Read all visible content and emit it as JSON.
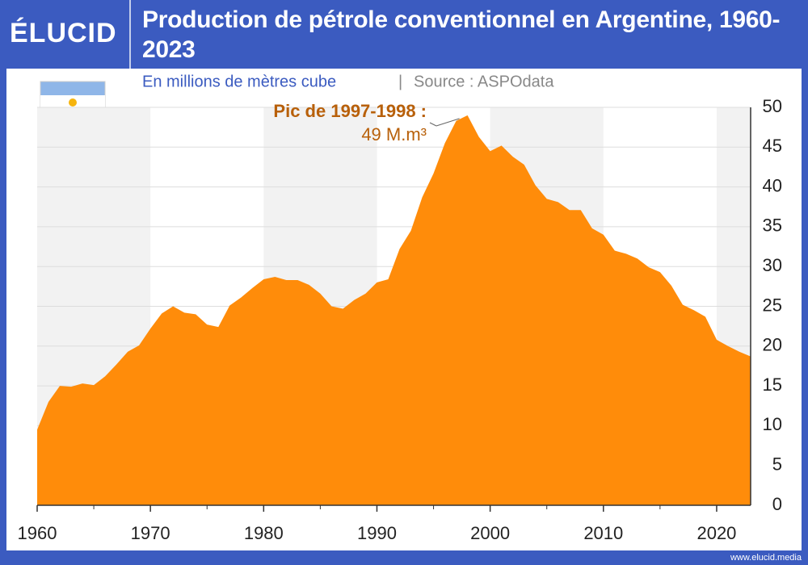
{
  "brand": "ÉLUCID",
  "footer": "www.elucid.media",
  "chart_data": {
    "type": "area",
    "title": "Production de pétrole conventionnel en Argentine, 1960-2023",
    "subtitle": "En millions de mètres cube",
    "source": "Source : ASPOdata",
    "annotation": {
      "title": "Pic de 1997-1998 :",
      "text": "49 M.m³",
      "x": 1998,
      "y": 49
    },
    "color": "#ff8c0a",
    "x": [
      1960,
      1961,
      1962,
      1963,
      1964,
      1965,
      1966,
      1967,
      1968,
      1969,
      1970,
      1971,
      1972,
      1973,
      1974,
      1975,
      1976,
      1977,
      1978,
      1979,
      1980,
      1981,
      1982,
      1983,
      1984,
      1985,
      1986,
      1987,
      1988,
      1989,
      1990,
      1991,
      1992,
      1993,
      1994,
      1995,
      1996,
      1997,
      1998,
      1999,
      2000,
      2001,
      2002,
      2003,
      2004,
      2005,
      2006,
      2007,
      2008,
      2009,
      2010,
      2011,
      2012,
      2013,
      2014,
      2015,
      2016,
      2017,
      2018,
      2019,
      2020,
      2021,
      2022,
      2023
    ],
    "values": [
      9.5,
      13,
      15,
      14.9,
      15.3,
      15.1,
      16.2,
      17.7,
      19.3,
      20.1,
      22.2,
      24.1,
      25,
      24.2,
      24,
      22.7,
      22.4,
      25.1,
      26.1,
      27.3,
      28.4,
      28.7,
      28.3,
      28.3,
      27.7,
      26.6,
      25,
      24.7,
      25.8,
      26.6,
      28,
      28.4,
      32.2,
      34.5,
      38.7,
      41.7,
      45.5,
      48.3,
      49,
      46.3,
      44.5,
      45.2,
      43.8,
      42.8,
      40.2,
      38.5,
      38.1,
      37.1,
      37.1,
      34.8,
      34,
      32,
      31.6,
      31,
      29.9,
      29.3,
      27.6,
      25.2,
      24.5,
      23.7,
      20.8,
      20,
      19.3,
      18.7
    ],
    "xlim": [
      1960,
      2023
    ],
    "xticks": [
      1960,
      1970,
      1980,
      1990,
      2000,
      2010,
      2020
    ],
    "ylim": [
      0,
      50
    ],
    "yticks": [
      0,
      5,
      10,
      15,
      20,
      25,
      30,
      35,
      40,
      45,
      50
    ],
    "grid": true,
    "decade_bands": true
  }
}
